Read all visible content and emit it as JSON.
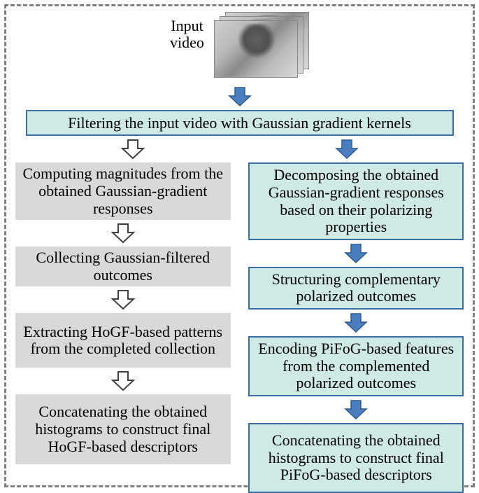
{
  "input_label": "Input\nvideo",
  "top_box": "Filtering the input video with Gaussian gradient kernels",
  "left": {
    "b1": "Computing magnitudes from the obtained Gaussian-gradient responses",
    "b2": "Collecting Gaussian-filtered outcomes",
    "b3": "Extracting HoGF-based patterns from the completed collection",
    "b4": "Concatenating the obtained histograms to construct final HoGF-based descriptors"
  },
  "right": {
    "b1": "Decomposing the obtained Gaussian-gradient responses based on their polarizing properties",
    "b2": "Structuring complementary polarized outcomes",
    "b3": "Encoding PiFoG-based features from the complemented polarized outcomes",
    "b4": "Concatenating the obtained histograms to construct final PiFoG-based descriptors"
  },
  "style": {
    "teal_fill": "#cfe9e4",
    "teal_border": "#3a6fa3",
    "gray_fill": "#d9d9d9",
    "arrow_blue_fill": "#4a7fbf",
    "arrow_blue_stroke": "#2e5a8f",
    "arrow_hollow_stroke": "#404040",
    "frame_border": "#808080",
    "font_family": "Times New Roman",
    "base_fontsize_pt": 16
  }
}
